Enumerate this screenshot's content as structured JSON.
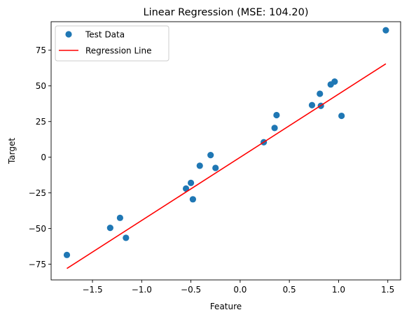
{
  "chart_data": {
    "type": "scatter",
    "title": "Linear Regression (MSE: 104.20)",
    "xlabel": "Feature",
    "ylabel": "Target",
    "xlim": [
      -1.92,
      1.63
    ],
    "ylim": [
      -86,
      95
    ],
    "xticks": [
      -1.5,
      -1.0,
      -0.5,
      0.0,
      0.5,
      1.0,
      1.5
    ],
    "xtick_labels": [
      "−1.5",
      "−1.0",
      "−0.5",
      "0.0",
      "0.5",
      "1.0",
      "1.5"
    ],
    "yticks": [
      -75,
      -50,
      -25,
      0,
      25,
      50,
      75
    ],
    "ytick_labels": [
      "−75",
      "−50",
      "−25",
      "0",
      "25",
      "50",
      "75"
    ],
    "grid": false,
    "legend_position": "upper-left",
    "series": [
      {
        "name": "Test Data",
        "kind": "scatter",
        "color": "#1f77b4",
        "points": [
          [
            -1.76,
            -68.5
          ],
          [
            -1.32,
            -49.5
          ],
          [
            -1.22,
            -42.5
          ],
          [
            -1.16,
            -56.5
          ],
          [
            -0.55,
            -22
          ],
          [
            -0.5,
            -18
          ],
          [
            -0.48,
            -29.5
          ],
          [
            -0.41,
            -6
          ],
          [
            -0.3,
            1.5
          ],
          [
            -0.25,
            -7.5
          ],
          [
            0.24,
            10.5
          ],
          [
            0.35,
            20.5
          ],
          [
            0.37,
            29.5
          ],
          [
            0.73,
            36.5
          ],
          [
            0.81,
            44.5
          ],
          [
            0.82,
            36
          ],
          [
            0.92,
            51
          ],
          [
            0.96,
            53
          ],
          [
            1.03,
            29
          ],
          [
            1.48,
            89
          ]
        ]
      },
      {
        "name": "Regression Line",
        "kind": "line",
        "color": "#ff0000",
        "points": [
          [
            -1.76,
            -78
          ],
          [
            1.48,
            65.5
          ]
        ]
      }
    ]
  }
}
